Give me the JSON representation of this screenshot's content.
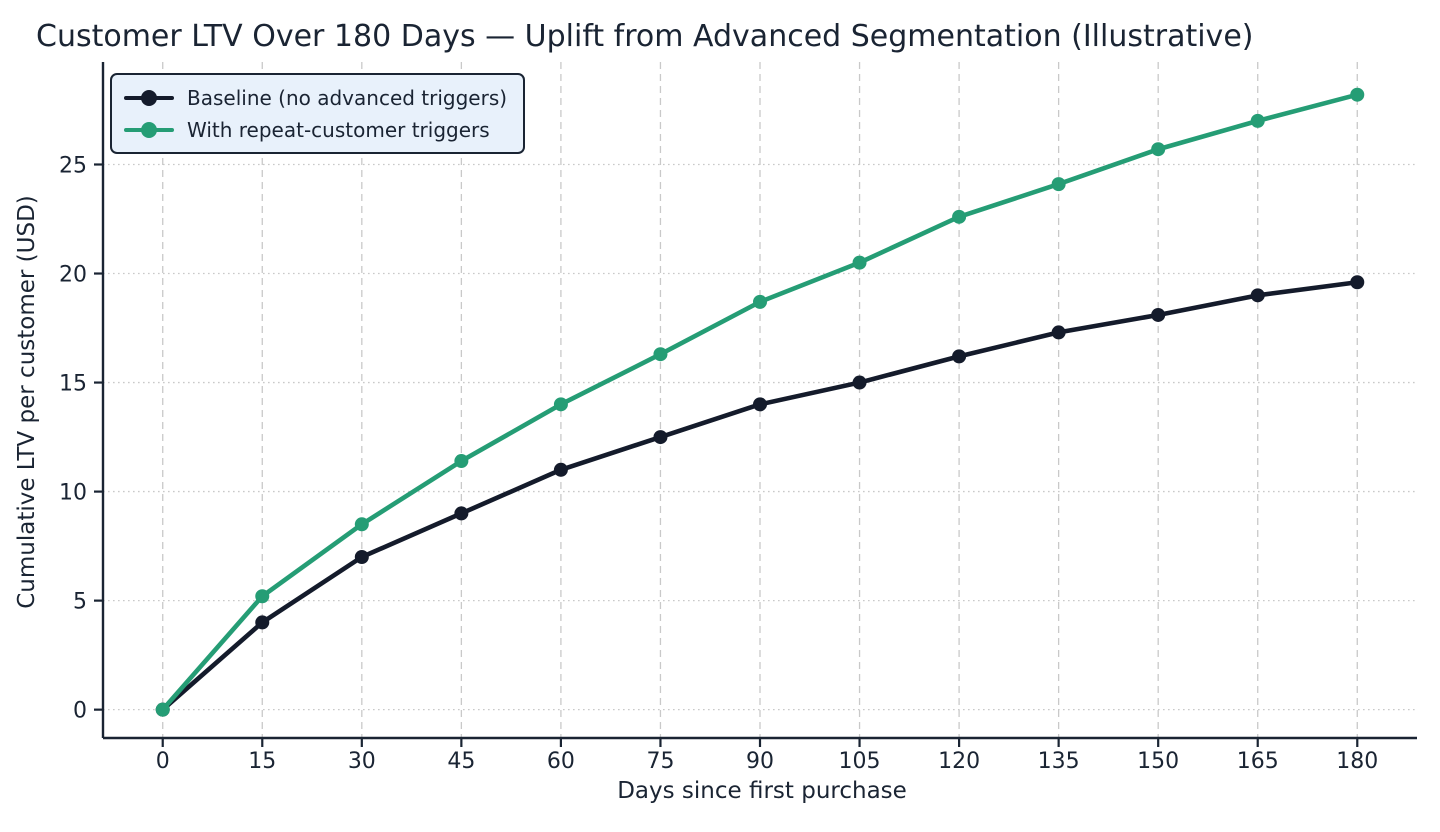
{
  "chart_data": {
    "type": "line",
    "title": "Customer LTV Over 180 Days — Uplift from Advanced Segmentation (Illustrative)",
    "xlabel": "Days since first purchase",
    "ylabel": "Cumulative LTV per customer (USD)",
    "x": [
      0,
      15,
      30,
      45,
      60,
      75,
      90,
      105,
      120,
      135,
      150,
      165,
      180
    ],
    "series": [
      {
        "name": "Baseline (no advanced triggers)",
        "color": "#141b2b",
        "marker": "circle",
        "values": [
          0,
          4.0,
          7.0,
          9.0,
          11.0,
          12.5,
          14.0,
          15.0,
          16.2,
          17.3,
          18.1,
          19.0,
          19.6
        ]
      },
      {
        "name": "With repeat-customer triggers",
        "color": "#259d75",
        "marker": "circle",
        "values": [
          0,
          5.2,
          8.5,
          11.4,
          14.0,
          16.3,
          18.7,
          20.5,
          22.6,
          24.1,
          25.7,
          27.0,
          28.2
        ]
      }
    ],
    "xticks": [
      0,
      15,
      30,
      45,
      60,
      75,
      90,
      105,
      120,
      135,
      150,
      165,
      180
    ],
    "yticks": [
      0,
      5,
      10,
      15,
      20,
      25
    ],
    "xlim": [
      -9,
      189
    ],
    "ylim": [
      -1.3,
      29.7
    ],
    "grid": true,
    "legend_position": "upper-left",
    "colors": {
      "text": "#1a2433",
      "axis": "#1a2433",
      "grid": "#c9c9c9",
      "legend_background": "#e8f1fb",
      "background": "#ffffff"
    }
  }
}
